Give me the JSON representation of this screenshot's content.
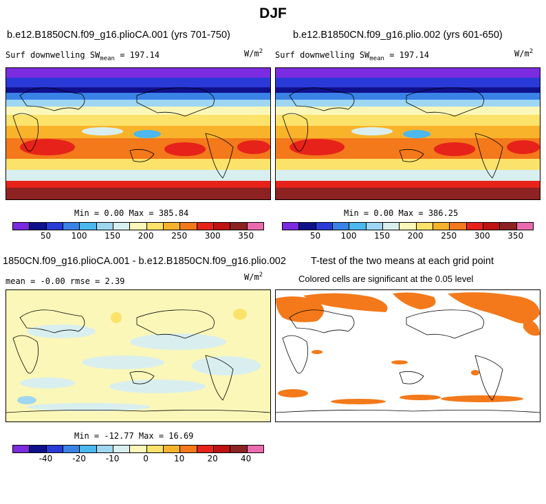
{
  "title": "DJF",
  "panels": {
    "top_left": {
      "title": "b.e12.B1850CN.f09_g16.plioCA.001 (yrs 701-750)",
      "var_label": "Surf downwelling SW",
      "mean_sub": "mean",
      "mean_value": "= 197.14",
      "units": "W/m",
      "units_sup": "2",
      "min_max": "Min =   0.00 Max = 385.84"
    },
    "top_right": {
      "title": "b.e12.B1850CN.f09_g16.plio.002 (yrs 601-650)",
      "var_label": "Surf downwelling SW",
      "mean_sub": "mean",
      "mean_value": "= 197.14",
      "units": "W/m",
      "units_sup": "2",
      "min_max": "Min =   0.00 Max = 386.25"
    },
    "bottom_left": {
      "title": "1850CN.f09_g16.plioCA.001 - b.e12.B1850CN.f09_g16.plio.002",
      "stats": "mean =  -0.00     rmse =    2.39",
      "units": "W/m",
      "units_sup": "2",
      "min_max": "Min = -12.77 Max =  16.69"
    },
    "bottom_right": {
      "title": "T-test of the two means at each grid point",
      "subtitle": "Colored cells are significant at the 0.05 level"
    }
  },
  "colorbar_abs": {
    "colors": [
      "#7b2be0",
      "#10108c",
      "#2a3ad6",
      "#3b82e6",
      "#4cb8ee",
      "#9fd6f2",
      "#d9efef",
      "#fbf7b8",
      "#fbe26a",
      "#f9b32a",
      "#f3791a",
      "#e6221a",
      "#bf1212",
      "#8c2222",
      "#ea6cae"
    ],
    "tick_labels": [
      "50",
      "100",
      "150",
      "200",
      "250",
      "300",
      "350"
    ]
  },
  "colorbar_diff": {
    "colors": [
      "#7b2be0",
      "#10108c",
      "#2a3ad6",
      "#3b82e6",
      "#4cb8ee",
      "#9fd6f2",
      "#d9efef",
      "#fbf7b8",
      "#fbe26a",
      "#f9b32a",
      "#f3791a",
      "#e6221a",
      "#bf1212",
      "#8c2222",
      "#ea6cae"
    ],
    "tick_labels": [
      "-40",
      "-20",
      "-10",
      "0",
      "10",
      "20",
      "40"
    ]
  }
}
